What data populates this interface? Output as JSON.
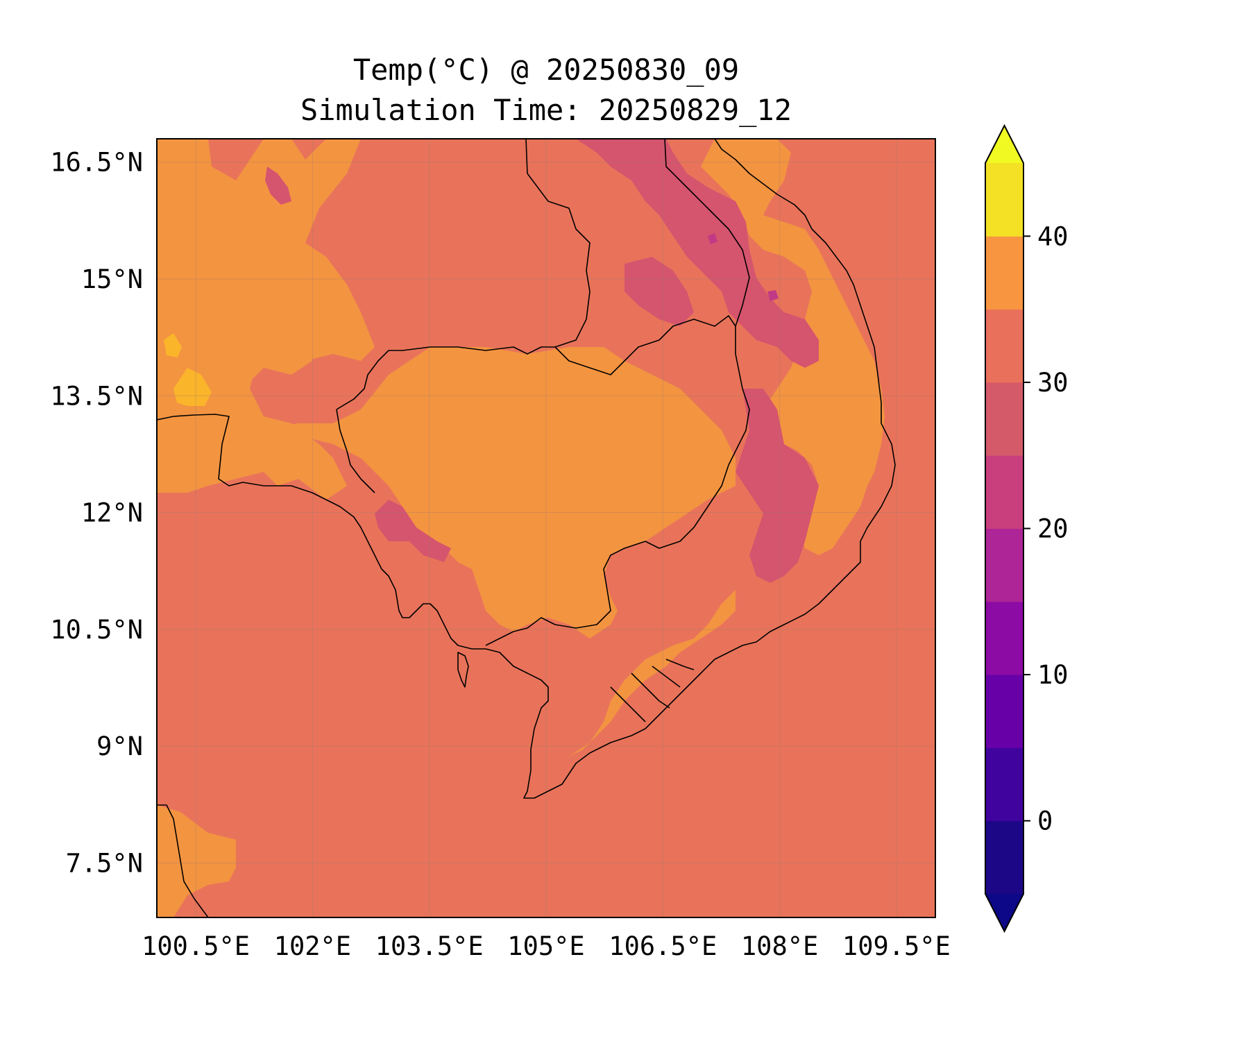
{
  "title": {
    "line1": "Temp(°C) @ 20250830_09",
    "line2": "Simulation Time: 20250829_12"
  },
  "map": {
    "lon_range": [
      100.0,
      110.0
    ],
    "lat_range": [
      6.8,
      16.8
    ],
    "x_ticks": [
      "100.5°E",
      "102°E",
      "103.5°E",
      "105°E",
      "106.5°E",
      "108°E",
      "109.5°E"
    ],
    "x_tick_values": [
      100.5,
      102,
      103.5,
      105,
      106.5,
      108,
      109.5
    ],
    "y_ticks": [
      "16.5°N",
      "15°N",
      "13.5°N",
      "12°N",
      "10.5°N",
      "9°N",
      "7.5°N"
    ],
    "y_tick_values": [
      16.5,
      15,
      13.5,
      12,
      10.5,
      9,
      7.5
    ],
    "gridlines": true,
    "colors": {
      "base_25_30": "#e8735a",
      "warm_30_35": "#f39441",
      "hot_35_40": "#fbb52b",
      "cool_20_25": "#d5546e",
      "cooler_15_20": "#c03a85",
      "ocean": "#e8735a"
    }
  },
  "colorbar": {
    "ticks": [
      "40",
      "30",
      "20",
      "10",
      "0"
    ],
    "tick_values": [
      40,
      30,
      20,
      10,
      0
    ],
    "range": [
      -5,
      45
    ],
    "levels": [
      -5,
      0,
      5,
      10,
      15,
      20,
      25,
      30,
      35,
      40,
      45
    ],
    "extend": "both",
    "bands": [
      "#1c0786",
      "#41039e",
      "#6700a7",
      "#8c0ba4",
      "#ad2596",
      "#c93f7d",
      "#d45a6a",
      "#e9705b",
      "#f89540",
      "#fcb22d"
    ],
    "under_color": "#0d0887",
    "over_color": "#f0f921",
    "top_band_color": "#f4e025"
  }
}
